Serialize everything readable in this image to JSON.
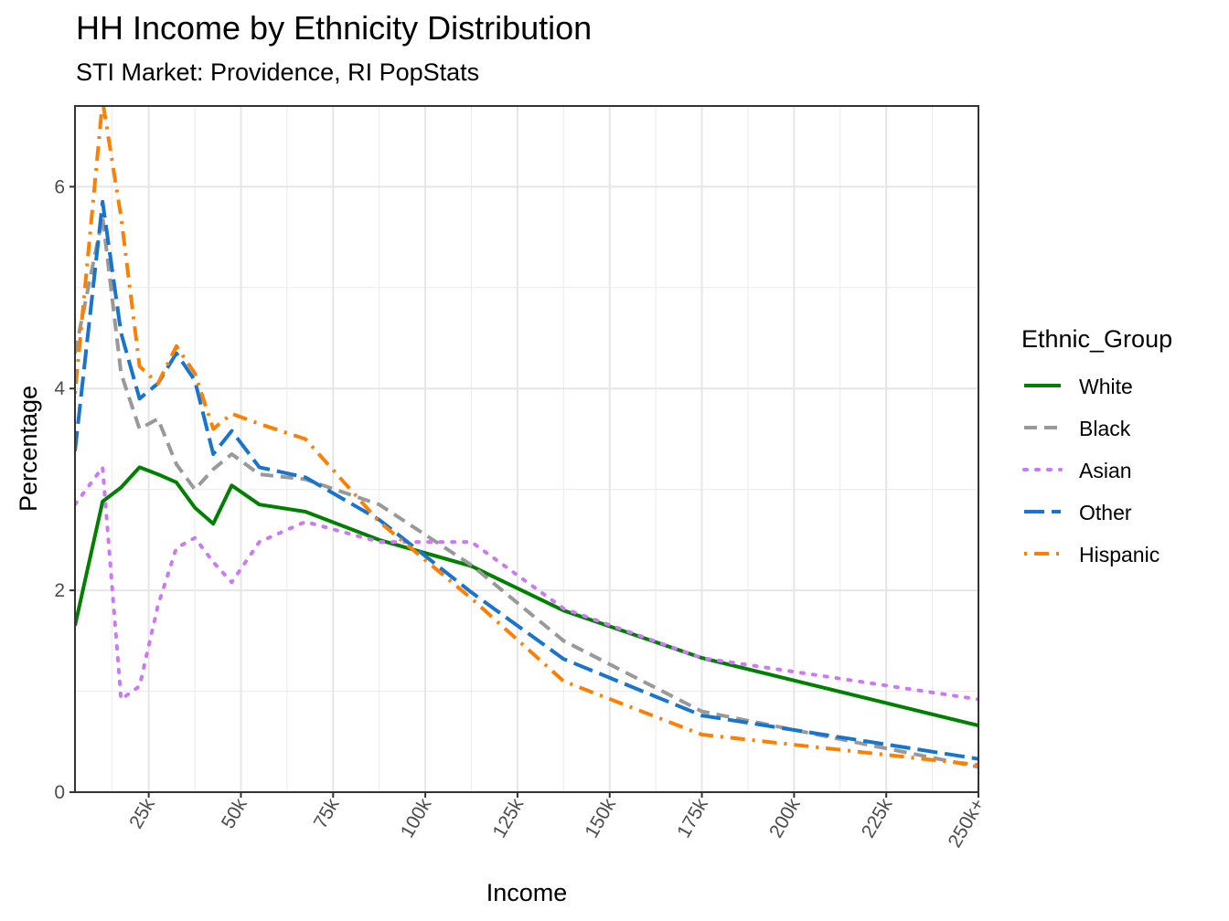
{
  "chart_data": {
    "type": "line",
    "title": "HH Income by Ethnicity Distribution",
    "subtitle": "STI Market: Providence, RI PopStats",
    "xlabel": "Income",
    "ylabel": "Percentage",
    "xlim": [
      5000,
      250000
    ],
    "ylim": [
      0,
      6.8
    ],
    "x_ticks": [
      {
        "value": 25000,
        "label": "25k"
      },
      {
        "value": 50000,
        "label": "50k"
      },
      {
        "value": 75000,
        "label": "75k"
      },
      {
        "value": 100000,
        "label": "100k"
      },
      {
        "value": 125000,
        "label": "125k"
      },
      {
        "value": 150000,
        "label": "150k"
      },
      {
        "value": 175000,
        "label": "175k"
      },
      {
        "value": 200000,
        "label": "200k"
      },
      {
        "value": 225000,
        "label": "225k"
      },
      {
        "value": 250000,
        "label": "250k+"
      }
    ],
    "y_ticks": [
      {
        "value": 0,
        "label": "0"
      },
      {
        "value": 2,
        "label": "2"
      },
      {
        "value": 4,
        "label": "4"
      },
      {
        "value": 6,
        "label": "6"
      }
    ],
    "grid": true,
    "legend_title": "Ethnic_Group",
    "legend_position": "right",
    "x": [
      5000,
      12500,
      17500,
      22500,
      27500,
      32500,
      37500,
      42500,
      47500,
      55000,
      67500,
      87500,
      112500,
      137500,
      175000,
      250000
    ],
    "series": [
      {
        "name": "White",
        "color": "#008000",
        "dash": "solid",
        "values": [
          1.65,
          2.88,
          3.02,
          3.22,
          3.15,
          3.07,
          2.82,
          2.66,
          3.04,
          2.85,
          2.78,
          2.5,
          2.24,
          1.8,
          1.33,
          0.66
        ]
      },
      {
        "name": "Black",
        "color": "#999999",
        "dash": "dashed",
        "values": [
          4.35,
          5.7,
          4.15,
          3.6,
          3.7,
          3.25,
          3.0,
          3.2,
          3.35,
          3.15,
          3.1,
          2.85,
          2.25,
          1.5,
          0.8,
          0.25
        ]
      },
      {
        "name": "Asian",
        "color": "#CC79F7",
        "dash": "dotted",
        "values": [
          2.85,
          3.22,
          0.92,
          1.05,
          1.85,
          2.42,
          2.52,
          2.28,
          2.08,
          2.48,
          2.68,
          2.48,
          2.48,
          1.82,
          1.33,
          0.92
        ]
      },
      {
        "name": "Other",
        "color": "#1874CD",
        "dash": "longdash",
        "values": [
          3.38,
          5.85,
          4.55,
          3.9,
          4.05,
          4.35,
          4.08,
          3.35,
          3.58,
          3.22,
          3.12,
          2.7,
          1.98,
          1.32,
          0.76,
          0.33
        ]
      },
      {
        "name": "Hispanic",
        "color": "#FF7F00",
        "dash": "dotdash",
        "values": [
          3.95,
          6.85,
          5.7,
          4.22,
          4.05,
          4.42,
          4.15,
          3.6,
          3.75,
          3.65,
          3.5,
          2.68,
          1.92,
          1.1,
          0.57,
          0.27
        ]
      }
    ]
  }
}
